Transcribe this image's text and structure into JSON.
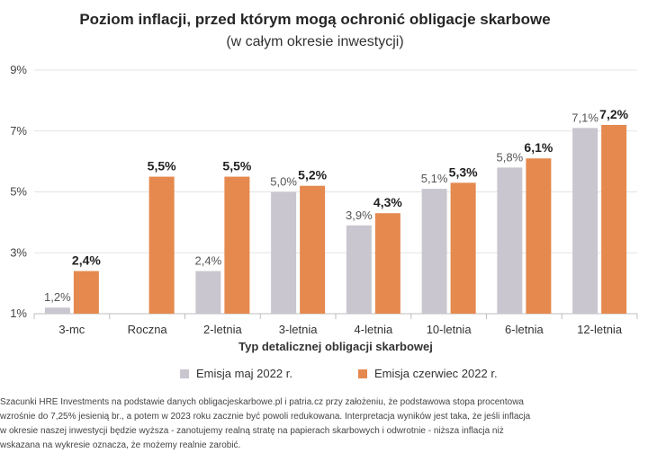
{
  "chart_data": {
    "type": "bar",
    "title": "Poziom inflacji, przed którym mogą ochronić obligacje skarbowe",
    "subtitle": "(w całym okresie inwestycji)",
    "xlabel": "Typ detalicznej obligacji skarbowej",
    "ylabel": "",
    "ylim": [
      1,
      9
    ],
    "yticks": [
      "1%",
      "3%",
      "5%",
      "7%",
      "9%"
    ],
    "yticks_values": [
      1,
      3,
      5,
      7,
      9
    ],
    "grid": true,
    "legend_position": "bottom",
    "categories": [
      "3-mc",
      "Roczna",
      "2-letnia",
      "3-letnia",
      "4-letnia",
      "10-letnia",
      "6-letnia",
      "12-letnia"
    ],
    "series": [
      {
        "name": "Emisja maj 2022 r.",
        "color": "#c9c6cf",
        "values": [
          1.2,
          null,
          2.4,
          5.0,
          3.9,
          5.1,
          5.8,
          7.1
        ],
        "labels": [
          "1,2%",
          "",
          "2,4%",
          "5,0%",
          "3,9%",
          "5,1%",
          "5,8%",
          "7,1%"
        ]
      },
      {
        "name": "Emisja czerwiec 2022 r.",
        "color": "#e5894e",
        "values": [
          2.4,
          5.5,
          5.5,
          5.2,
          4.3,
          5.3,
          6.1,
          7.2
        ],
        "labels": [
          "2,4%",
          "5,5%",
          "5,5%",
          "5,2%",
          "4,3%",
          "5,3%",
          "6,1%",
          "7,2%"
        ]
      }
    ]
  },
  "footnote": {
    "lines": [
      "Szacunki HRE Investments na podstawie danych obligacjeskarbowe.pl i patria.cz przy założeniu, że podstawowa stopa procentowa",
      "wzrośnie do 7,25% jesienią br., a potem w 2023 roku zacznie być powoli redukowana. Interpretacja wyników jest taka, że jeśli inflacja",
      "w okresie naszej inwestycji będzie wyższa - zanotujemy realną stratę na papierach skarbowych i odwrotnie - niższa inflacja niż",
      "wskazana na wykresie oznacza, że możemy realnie zarobić."
    ]
  }
}
